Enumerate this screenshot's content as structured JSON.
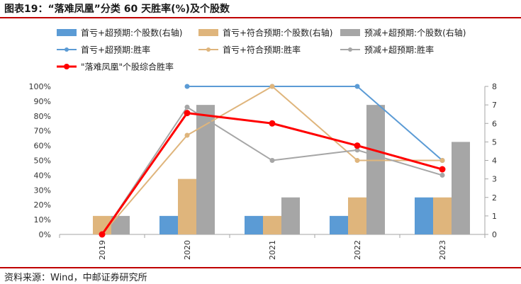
{
  "title": "图表19：“落难凤凰”分类 60 天胜率(%)及个股数",
  "source": "资料来源：Wind，中邮证券研究所",
  "colors": {
    "blue": "#5b9bd5",
    "orange": "#dfb57c",
    "gray": "#a6a6a6",
    "red": "#ff0000",
    "rule": "#c00000"
  },
  "chart_data": {
    "type": "bar+line",
    "categories": [
      "2019",
      "2020",
      "2021",
      "2022",
      "2023"
    ],
    "y_left": {
      "ticks": [
        "0%",
        "10%",
        "20%",
        "30%",
        "40%",
        "50%",
        "60%",
        "70%",
        "80%",
        "90%",
        "100%"
      ],
      "ylim": [
        0,
        100
      ]
    },
    "y_right": {
      "ticks": [
        "0",
        "1",
        "2",
        "3",
        "4",
        "5",
        "6",
        "7",
        "8"
      ],
      "ylim": [
        0,
        8
      ]
    },
    "bar_series": [
      {
        "name": "首亏+超预期:个股数(右轴)",
        "color": "#5b9bd5",
        "values": [
          0,
          1,
          1,
          1,
          2
        ]
      },
      {
        "name": "首亏+符合预期:个股数(右轴)",
        "color": "#dfb57c",
        "values": [
          1,
          3,
          1,
          2,
          2
        ]
      },
      {
        "name": "预减+超预期:个股数(右轴)",
        "color": "#a6a6a6",
        "values": [
          1,
          7,
          2,
          7,
          5
        ]
      }
    ],
    "line_series": [
      {
        "name": "首亏+超预期:胜率",
        "color": "#5b9bd5",
        "values": [
          null,
          100,
          100,
          100,
          50
        ]
      },
      {
        "name": "首亏+符合预期:胜率",
        "color": "#dfb57c",
        "values": [
          0,
          67,
          100,
          50,
          50
        ]
      },
      {
        "name": "预减+超预期:胜率",
        "color": "#a6a6a6",
        "values": [
          0,
          86,
          50,
          57,
          40
        ]
      },
      {
        "name": "\"落难凤凰\"个股综合胜率",
        "color": "#ff0000",
        "values": [
          0,
          82,
          75,
          60,
          44
        ],
        "bold": true
      }
    ]
  }
}
